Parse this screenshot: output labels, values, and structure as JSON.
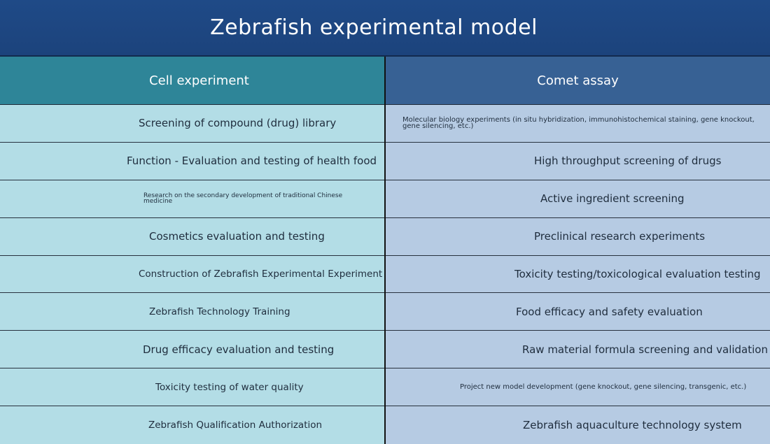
{
  "title": "Zebrafish experimental model",
  "columns": [
    {
      "header": "Cell experiment",
      "items": [
        "Screening of compound (drug) library",
        "Function - Evaluation and testing of health food",
        "Research on the secondary development of traditional Chinese medicine",
        "Cosmetics evaluation and testing",
        "Construction of Zebrafish Experimental Experiment",
        "Zebrafish Technology Training",
        "Drug efficacy evaluation and testing",
        "Toxicity testing of water quality",
        "Zebrafish Qualification Authorization"
      ]
    },
    {
      "header": "Comet assay",
      "items": [
        "Molecular biology experiments (in situ hybridization, immunohistochemical staining, gene knockout, gene silencing, etc.)",
        "High throughput screening of drugs",
        "Active ingredient screening",
        "Preclinical research experiments",
        "Toxicity testing/toxicological evaluation testing",
        "Food efficacy and safety evaluation",
        "Raw material formula screening and validation",
        "Project new model development (gene knockout, gene silencing, transgenic, etc.)",
        "Zebrafish aquaculture technology system"
      ]
    }
  ]
}
